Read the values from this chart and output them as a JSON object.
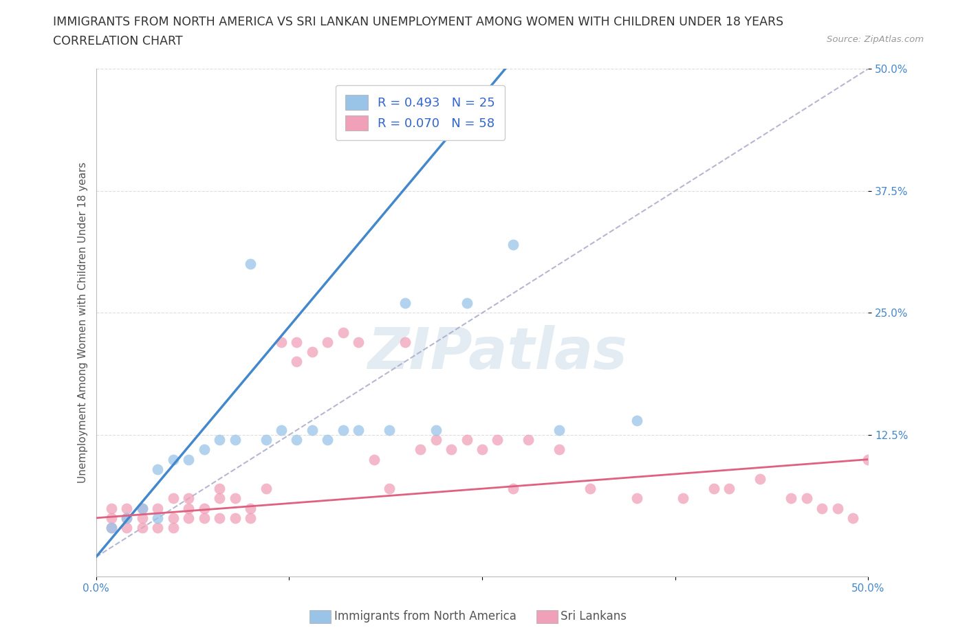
{
  "title_line1": "IMMIGRANTS FROM NORTH AMERICA VS SRI LANKAN UNEMPLOYMENT AMONG WOMEN WITH CHILDREN UNDER 18 YEARS",
  "title_line2": "CORRELATION CHART",
  "source_text": "Source: ZipAtlas.com",
  "ylabel": "Unemployment Among Women with Children Under 18 years",
  "xlim": [
    0.0,
    0.5
  ],
  "ylim": [
    -0.02,
    0.5
  ],
  "xticks": [
    0.0,
    0.125,
    0.25,
    0.375,
    0.5
  ],
  "yticks": [
    0.125,
    0.25,
    0.375,
    0.5
  ],
  "xticklabels": [
    "0.0%",
    "",
    "",
    "",
    "50.0%"
  ],
  "yticklabels": [
    "12.5%",
    "25.0%",
    "37.5%",
    "50.0%"
  ],
  "legend_r1": "R = 0.493",
  "legend_n1": "N = 25",
  "legend_r2": "R = 0.070",
  "legend_n2": "N = 58",
  "legend_label1": "Immigrants from North America",
  "legend_label2": "Sri Lankans",
  "blue_scatter_x": [
    0.01,
    0.02,
    0.03,
    0.04,
    0.04,
    0.05,
    0.06,
    0.07,
    0.08,
    0.09,
    0.1,
    0.11,
    0.12,
    0.13,
    0.14,
    0.15,
    0.16,
    0.17,
    0.19,
    0.2,
    0.22,
    0.24,
    0.27,
    0.3,
    0.35
  ],
  "blue_scatter_y": [
    0.03,
    0.04,
    0.05,
    0.04,
    0.09,
    0.1,
    0.1,
    0.11,
    0.12,
    0.12,
    0.3,
    0.12,
    0.13,
    0.12,
    0.13,
    0.12,
    0.13,
    0.13,
    0.13,
    0.26,
    0.13,
    0.26,
    0.32,
    0.13,
    0.14
  ],
  "pink_scatter_x": [
    0.01,
    0.01,
    0.01,
    0.02,
    0.02,
    0.02,
    0.03,
    0.03,
    0.03,
    0.04,
    0.04,
    0.05,
    0.05,
    0.05,
    0.06,
    0.06,
    0.06,
    0.07,
    0.07,
    0.08,
    0.08,
    0.08,
    0.09,
    0.09,
    0.1,
    0.1,
    0.11,
    0.12,
    0.13,
    0.13,
    0.14,
    0.15,
    0.16,
    0.17,
    0.18,
    0.19,
    0.2,
    0.21,
    0.22,
    0.23,
    0.24,
    0.25,
    0.26,
    0.27,
    0.28,
    0.3,
    0.32,
    0.35,
    0.38,
    0.4,
    0.41,
    0.43,
    0.45,
    0.46,
    0.47,
    0.48,
    0.49,
    0.5
  ],
  "pink_scatter_y": [
    0.03,
    0.04,
    0.05,
    0.03,
    0.04,
    0.05,
    0.03,
    0.04,
    0.05,
    0.03,
    0.05,
    0.03,
    0.04,
    0.06,
    0.04,
    0.05,
    0.06,
    0.04,
    0.05,
    0.04,
    0.06,
    0.07,
    0.04,
    0.06,
    0.04,
    0.05,
    0.07,
    0.22,
    0.2,
    0.22,
    0.21,
    0.22,
    0.23,
    0.22,
    0.1,
    0.07,
    0.22,
    0.11,
    0.12,
    0.11,
    0.12,
    0.11,
    0.12,
    0.07,
    0.12,
    0.11,
    0.07,
    0.06,
    0.06,
    0.07,
    0.07,
    0.08,
    0.06,
    0.06,
    0.05,
    0.05,
    0.04,
    0.1
  ],
  "blue_line_x": [
    0.0,
    0.265
  ],
  "blue_line_y": [
    0.0,
    0.5
  ],
  "pink_line_x": [
    0.0,
    0.5
  ],
  "pink_line_y": [
    0.04,
    0.1
  ],
  "dashed_line_x": [
    0.0,
    0.5
  ],
  "dashed_line_y": [
    0.0,
    0.5
  ],
  "blue_line_color": "#4488cc",
  "pink_line_color": "#e06080",
  "dashed_line_color": "#aaaacc",
  "scatter_blue_color": "#99c4e8",
  "scatter_pink_color": "#f0a0b8",
  "grid_color": "#dddddd",
  "watermark_color": "#ccdde8",
  "background_color": "#ffffff",
  "title_fontsize": 12.5,
  "subtitle_fontsize": 12.5,
  "axis_label_fontsize": 11,
  "tick_fontsize": 11,
  "legend_fontsize": 13,
  "tick_color": "#4488cc"
}
